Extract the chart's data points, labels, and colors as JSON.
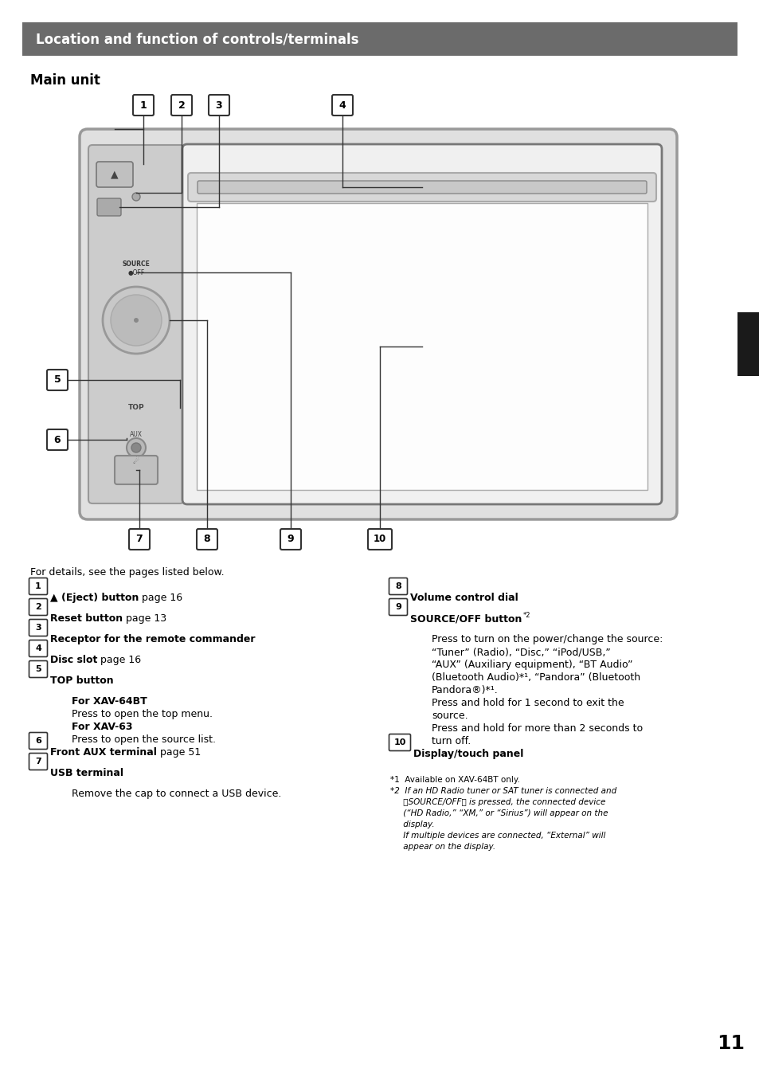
{
  "page_bg": "#ffffff",
  "header_bg": "#6b6b6b",
  "header_text": "Location and function of controls/terminals",
  "header_text_color": "#ffffff",
  "header_font_size": 12,
  "section_title": "Main unit",
  "section_title_font_size": 12,
  "body_font_size": 9,
  "small_font_size": 7.5,
  "italic_font_size": 7.5,
  "page_number": "11",
  "intro_text": "For details, see the pages listed below."
}
